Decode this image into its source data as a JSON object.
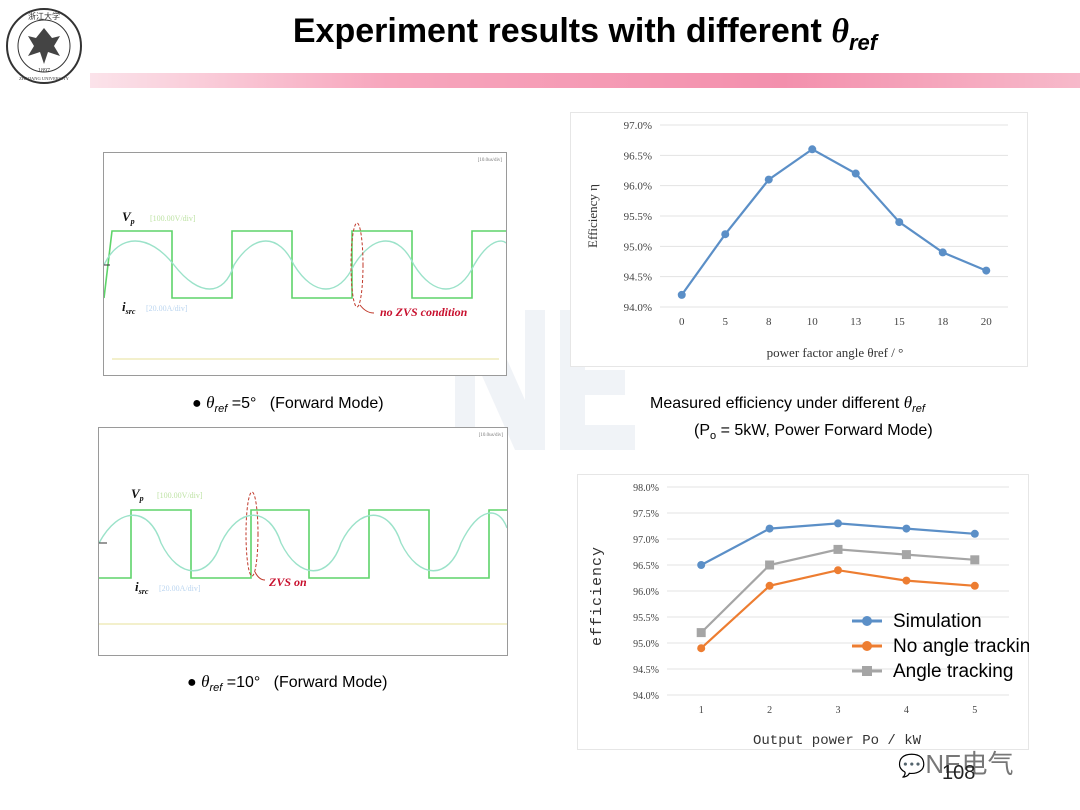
{
  "header": {
    "title_prefix": "Experiment results with different ",
    "title_theta": "θ",
    "title_sub": "ref",
    "logo_text_top": "浙江大学",
    "logo_year": "1897",
    "logo_text_bottom": "ZHEJIANG UNIVERSITY"
  },
  "scope1": {
    "vp_label": "V",
    "vp_sub": "p",
    "vp_scale": "[100.00V/div]",
    "isrc_label": "i",
    "isrc_sub": "src",
    "isrc_scale": "[20.00A/div]",
    "corner_tag": "[10.0us/div]",
    "annotation": "no ZVS condition",
    "caption_theta": "θ",
    "caption_sub": "ref",
    "caption_value": " =5°",
    "caption_mode": "(Forward Mode)"
  },
  "scope2": {
    "vp_label": "V",
    "vp_sub": "p",
    "vp_scale": "[100.00V/div]",
    "isrc_label": "i",
    "isrc_sub": "src",
    "isrc_scale": "[20.00A/div]",
    "corner_tag": "[10.0us/div]",
    "zero_marker": "0",
    "annotation": "ZVS on",
    "caption_theta": "θ",
    "caption_sub": "ref",
    "caption_value": " =10°",
    "caption_mode": "(Forward Mode)"
  },
  "caption_middle": {
    "line1_prefix": "Measured efficiency under different ",
    "line1_theta": "θ",
    "line1_sub": "ref",
    "line2_prefix": "(P",
    "line2_sub": "o",
    "line2_suffix": " = 5kW, Power Forward Mode)"
  },
  "chart_data": [
    {
      "type": "line",
      "title": "",
      "categories": [
        "0",
        "5",
        "8",
        "10",
        "13",
        "15",
        "18",
        "20"
      ],
      "series": [
        {
          "name": "Efficiency",
          "values": [
            94.2,
            95.2,
            96.1,
            96.6,
            96.2,
            95.4,
            94.9,
            94.6
          ]
        }
      ],
      "xlabel": "power factor angle  θref / °",
      "ylabel": "Efficiency  η",
      "ylim": [
        94.0,
        97.0
      ],
      "yticks": [
        "94.0%",
        "94.5%",
        "95.0%",
        "95.5%",
        "96.0%",
        "96.5%",
        "97.0%"
      ],
      "color": "#5b8fc7"
    },
    {
      "type": "line",
      "title": "",
      "categories": [
        "1",
        "2",
        "3",
        "4",
        "5"
      ],
      "series": [
        {
          "name": "Simulation",
          "values": [
            96.5,
            97.2,
            97.3,
            97.2,
            97.1
          ],
          "color": "#5b8fc7",
          "marker": "circle"
        },
        {
          "name": "No angle tracking",
          "values": [
            94.9,
            96.1,
            96.4,
            96.2,
            96.1
          ],
          "color": "#ed7d31",
          "marker": "circle"
        },
        {
          "name": "Angle tracking",
          "values": [
            95.2,
            96.5,
            96.8,
            96.7,
            96.6
          ],
          "color": "#a5a5a5",
          "marker": "square"
        }
      ],
      "xlabel": "Output power  Po / kW",
      "ylabel": "efficiency",
      "ylim": [
        94.0,
        98.0
      ],
      "yticks": [
        "94.0%",
        "94.5%",
        "95.0%",
        "95.5%",
        "96.0%",
        "96.5%",
        "97.0%",
        "97.5%",
        "98.0%"
      ],
      "legend_position": "bottom-right"
    }
  ],
  "footer": {
    "page_number": "108",
    "wechat_label": "NE电气"
  }
}
